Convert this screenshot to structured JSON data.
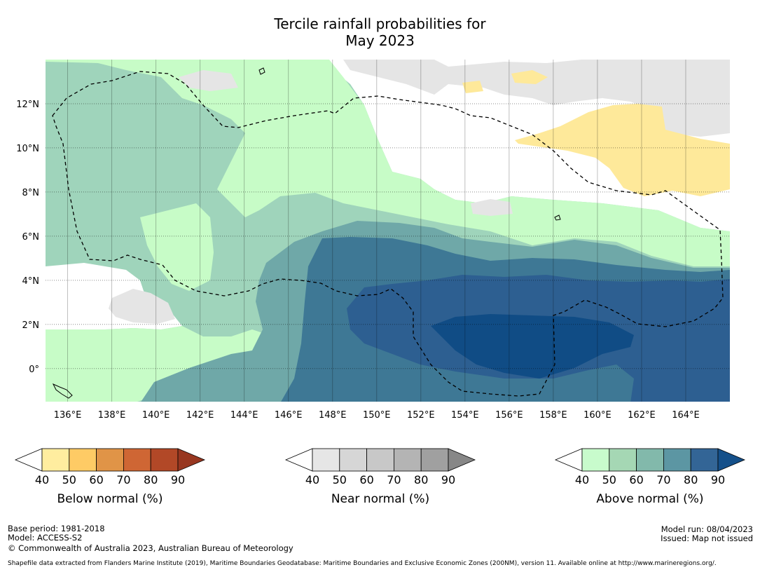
{
  "title": {
    "line1": "Tercile rainfall probabilities for",
    "line2": "May 2023"
  },
  "map": {
    "lon_range": [
      135,
      166
    ],
    "lat_range": [
      -1.5,
      14
    ],
    "lon_ticks": [
      {
        "value": 136,
        "label": "136°E"
      },
      {
        "value": 138,
        "label": "138°E"
      },
      {
        "value": 140,
        "label": "140°E"
      },
      {
        "value": 142,
        "label": "142°E"
      },
      {
        "value": 144,
        "label": "144°E"
      },
      {
        "value": 146,
        "label": "146°E"
      },
      {
        "value": 148,
        "label": "148°E"
      },
      {
        "value": 150,
        "label": "150°E"
      },
      {
        "value": 152,
        "label": "152°E"
      },
      {
        "value": 154,
        "label": "154°E"
      },
      {
        "value": 156,
        "label": "156°E"
      },
      {
        "value": 158,
        "label": "158°E"
      },
      {
        "value": 160,
        "label": "160°E"
      },
      {
        "value": 162,
        "label": "162°E"
      },
      {
        "value": 164,
        "label": "164°E"
      }
    ],
    "lat_ticks": [
      {
        "value": 12,
        "label": "12°N"
      },
      {
        "value": 10,
        "label": "10°N"
      },
      {
        "value": 8,
        "label": "8°N"
      },
      {
        "value": 6,
        "label": "6°N"
      },
      {
        "value": 4,
        "label": "4°N"
      },
      {
        "value": 2,
        "label": "2°N"
      },
      {
        "value": 0,
        "label": "0°"
      }
    ],
    "colors": {
      "above_40": "#c7fcc7",
      "above_50": "#9fd4bb",
      "above_60": "#6fa8a8",
      "above_70": "#3e7895",
      "above_80": "#2d5f91",
      "above_90": "#104c85",
      "near_40": "#e5e5e5",
      "below_40": "#fee99a"
    }
  },
  "legends": [
    {
      "title": "Below normal (%)",
      "labels": [
        "40",
        "50",
        "60",
        "70",
        "80",
        "90"
      ],
      "colors": [
        "#ffed9f",
        "#fecb65",
        "#e09447",
        "#cf6634",
        "#b24827",
        "#983720"
      ]
    },
    {
      "title": "Near normal (%)",
      "labels": [
        "40",
        "50",
        "60",
        "70",
        "80",
        "90"
      ],
      "colors": [
        "#e6e6e6",
        "#d6d6d6",
        "#c8c8c8",
        "#b4b4b4",
        "#a0a0a0",
        "#878787"
      ]
    },
    {
      "title": "Above normal (%)",
      "labels": [
        "40",
        "50",
        "60",
        "70",
        "80",
        "90"
      ],
      "colors": [
        "#c8fbcc",
        "#a5d7b4",
        "#82b9ab",
        "#5c96a3",
        "#336596",
        "#15508a"
      ]
    }
  ],
  "footer": {
    "base_period": "Base period: 1981-2018",
    "model": "Model: ACCESS-S2",
    "copyright": "© Commonwealth of Australia 2023, Australian Bureau of Meteorology",
    "model_run": "Model run: 08/04/2023",
    "issued": "Issued: Map not issued",
    "shapefile": "Shapefile data extracted from Flanders Marine Institute (2019), Maritime Boundaries Geodatabase: Maritime Boundaries and Exclusive Economic Zones (200NM), version 11. Available online at http://www.marineregions.org/."
  }
}
